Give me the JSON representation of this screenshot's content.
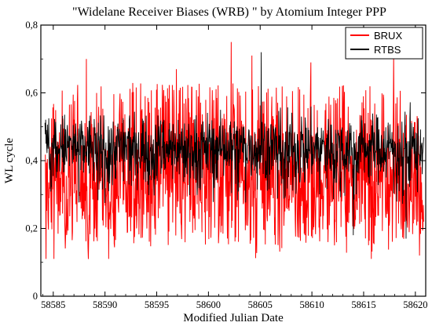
{
  "chart_data": {
    "type": "line",
    "title": "\"Widelane Receiver Biases (WRB) \" by Atomium Integer PPP",
    "xlabel": "Modified Julian Date",
    "ylabel": "WL cycle",
    "xlim": [
      58583.8,
      58621.0
    ],
    "ylim": [
      0,
      0.8
    ],
    "x_ticks": [
      58585,
      58590,
      58595,
      58600,
      58605,
      58610,
      58615,
      58620
    ],
    "y_ticks": [
      0,
      0.2,
      0.4,
      0.6,
      0.8
    ],
    "y_tick_labels": [
      "0",
      "0,2",
      "0,4",
      "0,6",
      "0,8"
    ],
    "legend_position": "top-right",
    "grid": false,
    "series": [
      {
        "name": "BRUX",
        "color": "#ff0000",
        "mean": 0.33,
        "min": 0.11,
        "max": 0.75,
        "spikes": [
          {
            "x": 58584.3,
            "y": 0.11
          },
          {
            "x": 58588.2,
            "y": 0.7
          },
          {
            "x": 58596.9,
            "y": 0.67
          },
          {
            "x": 58602.2,
            "y": 0.75
          },
          {
            "x": 58604.2,
            "y": 0.71
          },
          {
            "x": 58609.9,
            "y": 0.69
          },
          {
            "x": 58617.9,
            "y": 0.71
          },
          {
            "x": 58620.4,
            "y": 0.12
          }
        ]
      },
      {
        "name": "RTBS",
        "color": "#000000",
        "mean": 0.44,
        "min": 0.17,
        "max": 0.72,
        "spikes": [
          {
            "x": 58605.1,
            "y": 0.72
          },
          {
            "x": 58614.0,
            "y": 0.18
          },
          {
            "x": 58619.1,
            "y": 0.17
          }
        ]
      }
    ]
  }
}
